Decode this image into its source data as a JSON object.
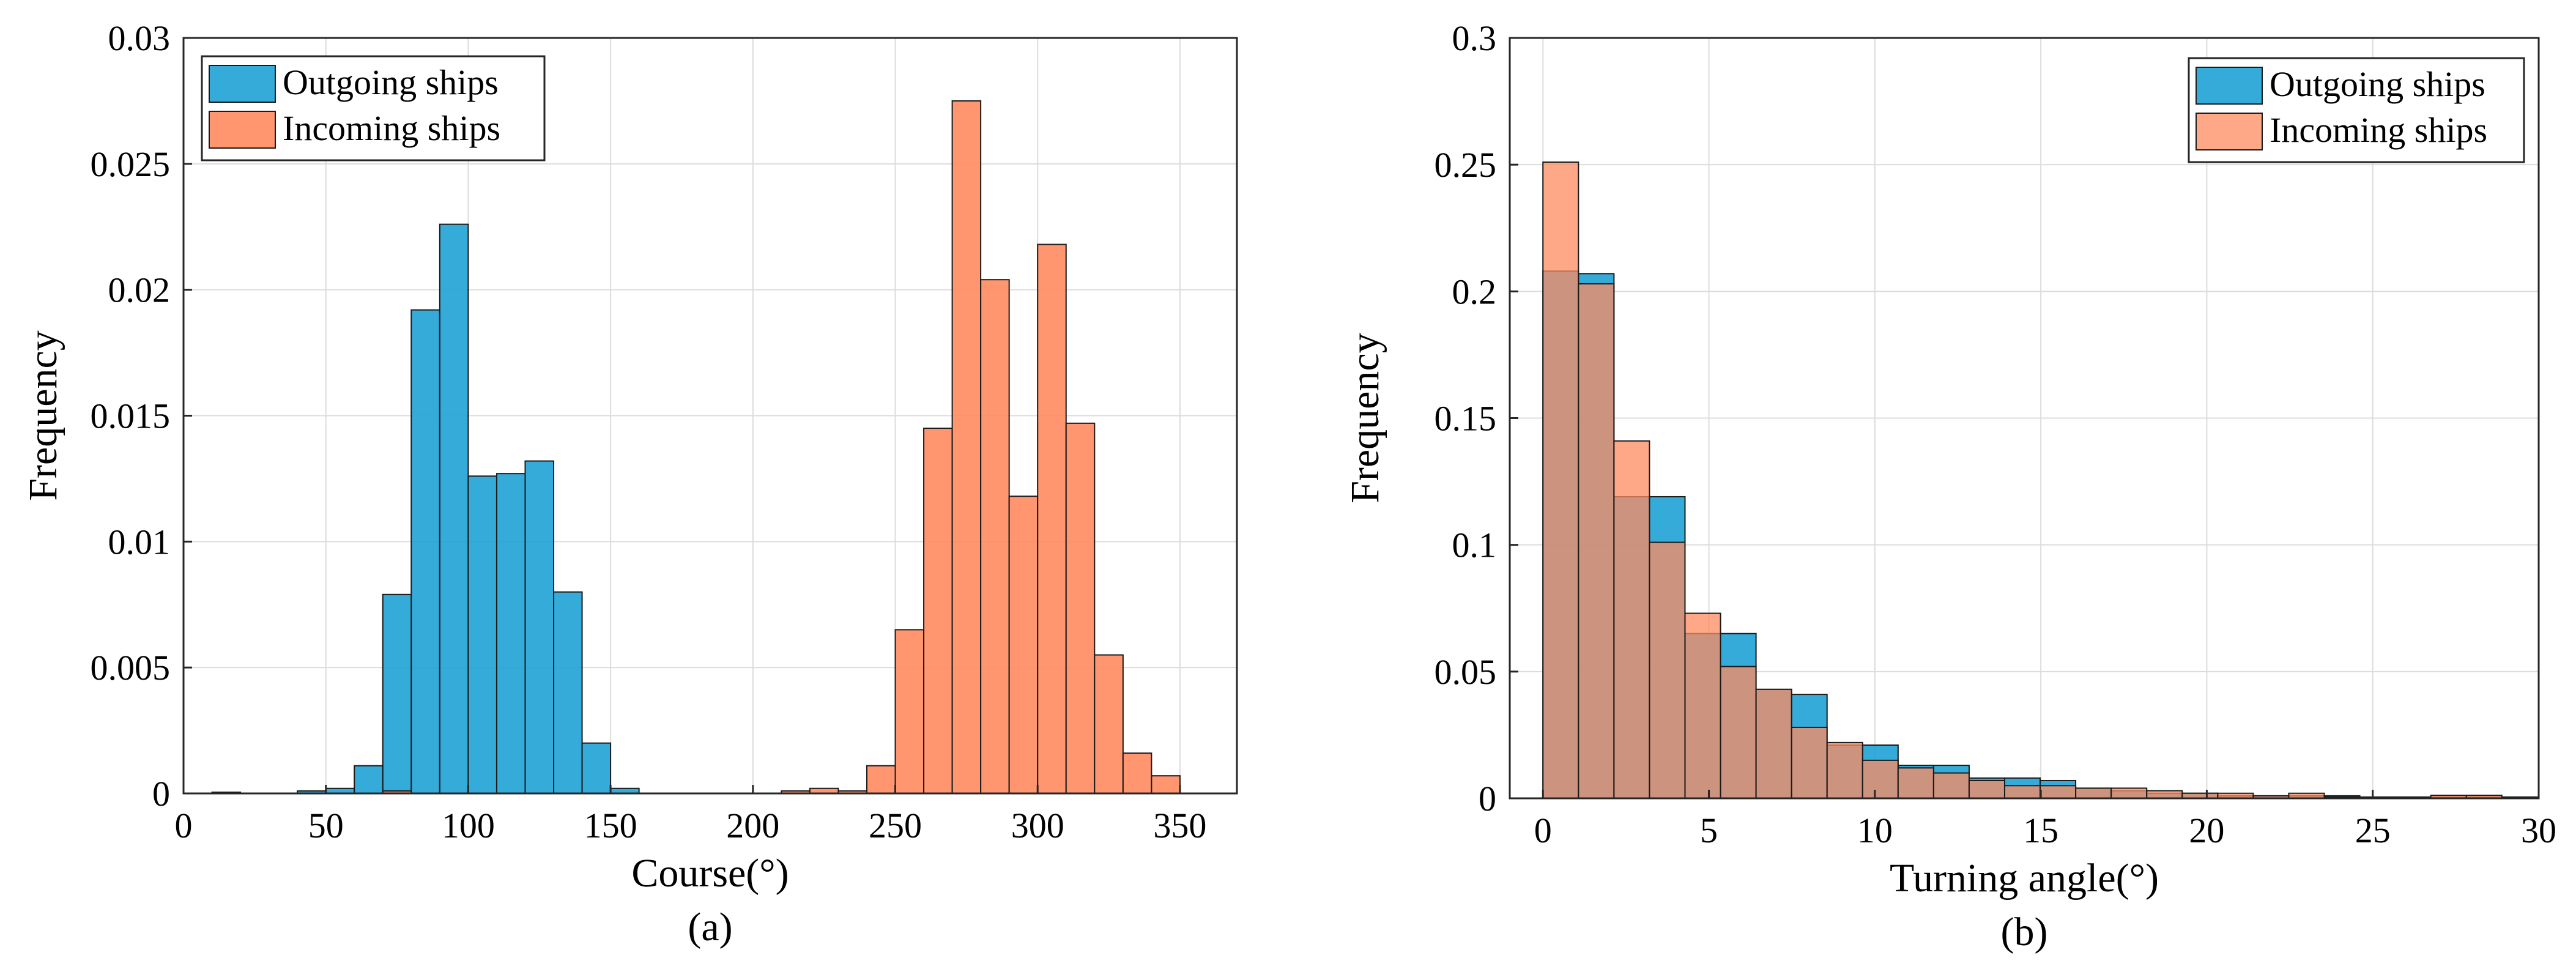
{
  "chart_data": [
    {
      "type": "bar",
      "subtype": "histogram",
      "caption": "(a)",
      "xlabel": "Course(°)",
      "ylabel": "Frequency",
      "xlim": [
        0,
        370
      ],
      "ylim": [
        0,
        0.03
      ],
      "xticks": [
        "0",
        "50",
        "100",
        "150",
        "200",
        "250",
        "300",
        "350"
      ],
      "yticks": [
        "0",
        "0.005",
        "0.01",
        "0.015",
        "0.02",
        "0.025",
        "0.03"
      ],
      "grid": true,
      "legend_position": "top-left",
      "legend": [
        "Outgoing ships",
        "Incoming ships"
      ],
      "bin_width": 10,
      "series": [
        {
          "name": "Outgoing ships",
          "color": "#1fa2d6",
          "opacity": 0.9,
          "bins": [
            [
              10,
              5e-05
            ],
            [
              40,
              0.0001
            ],
            [
              50,
              0.0002
            ],
            [
              60,
              0.0011
            ],
            [
              70,
              0.0079
            ],
            [
              80,
              0.0192
            ],
            [
              90,
              0.0226
            ],
            [
              100,
              0.0126
            ],
            [
              110,
              0.0127
            ],
            [
              120,
              0.0132
            ],
            [
              130,
              0.008
            ],
            [
              140,
              0.002
            ],
            [
              150,
              0.0002
            ]
          ]
        },
        {
          "name": "Incoming ships",
          "color": "#ff8b60",
          "opacity": 0.9,
          "bins": [
            [
              70,
              0.0001
            ],
            [
              210,
              0.0001
            ],
            [
              220,
              0.0002
            ],
            [
              230,
              0.0001
            ],
            [
              240,
              0.0011
            ],
            [
              250,
              0.0065
            ],
            [
              260,
              0.0145
            ],
            [
              270,
              0.0275
            ],
            [
              280,
              0.0204
            ],
            [
              290,
              0.0118
            ],
            [
              300,
              0.0218
            ],
            [
              310,
              0.0147
            ],
            [
              320,
              0.0055
            ],
            [
              330,
              0.0016
            ],
            [
              340,
              0.0007
            ]
          ]
        }
      ]
    },
    {
      "type": "bar",
      "subtype": "histogram",
      "caption": "(b)",
      "xlabel": "Turning angle(°)",
      "ylabel": "Frequency",
      "xlim": [
        -1,
        30
      ],
      "ylim": [
        0,
        0.3
      ],
      "xticks": [
        "0",
        "5",
        "10",
        "15",
        "20",
        "25",
        "30"
      ],
      "yticks": [
        "0",
        "0.05",
        "0.1",
        "0.15",
        "0.2",
        "0.25",
        "0.3"
      ],
      "grid": true,
      "legend_position": "top-right",
      "legend": [
        "Outgoing ships",
        "Incoming ships"
      ],
      "bin_width": 1.07,
      "series": [
        {
          "name": "Outgoing ships",
          "color": "#1fa2d6",
          "opacity": 0.9,
          "bins": [
            [
              0,
              0.208
            ],
            [
              1.07,
              0.207
            ],
            [
              2.14,
              0.119
            ],
            [
              3.21,
              0.119
            ],
            [
              4.28,
              0.065
            ],
            [
              5.35,
              0.065
            ],
            [
              6.42,
              0.043
            ],
            [
              7.49,
              0.041
            ],
            [
              8.56,
              0.021
            ],
            [
              9.63,
              0.021
            ],
            [
              10.7,
              0.013
            ],
            [
              11.77,
              0.013
            ],
            [
              12.84,
              0.008
            ],
            [
              13.91,
              0.008
            ],
            [
              14.98,
              0.007
            ],
            [
              16.05,
              0.004
            ],
            [
              17.12,
              0.003
            ],
            [
              18.19,
              0.002
            ],
            [
              19.26,
              0.002
            ],
            [
              20.33,
              0.001
            ],
            [
              21.4,
              0.001
            ],
            [
              22.47,
              0.001
            ],
            [
              23.54,
              0.001
            ],
            [
              24.61,
              0.0005
            ],
            [
              25.68,
              0.0005
            ],
            [
              26.75,
              0.0005
            ],
            [
              27.82,
              0.0005
            ],
            [
              28.89,
              0.0005
            ]
          ]
        },
        {
          "name": "Incoming ships",
          "color": "#ff8b60",
          "opacity": 0.75,
          "bins": [
            [
              0,
              0.251
            ],
            [
              1.07,
              0.203
            ],
            [
              2.14,
              0.141
            ],
            [
              3.21,
              0.101
            ],
            [
              4.28,
              0.073
            ],
            [
              5.35,
              0.052
            ],
            [
              6.42,
              0.043
            ],
            [
              7.49,
              0.028
            ],
            [
              8.56,
              0.022
            ],
            [
              9.63,
              0.015
            ],
            [
              10.7,
              0.012
            ],
            [
              11.77,
              0.01
            ],
            [
              12.84,
              0.007
            ],
            [
              13.91,
              0.005
            ],
            [
              14.98,
              0.005
            ],
            [
              16.05,
              0.004
            ],
            [
              17.12,
              0.004
            ],
            [
              18.19,
              0.003
            ],
            [
              19.26,
              0.002
            ],
            [
              20.33,
              0.002
            ],
            [
              21.4,
              0.001
            ],
            [
              22.47,
              0.002
            ],
            [
              23.54,
              0.0005
            ],
            [
              24.61,
              0.0005
            ],
            [
              25.68,
              0.0005
            ],
            [
              26.75,
              0.0012
            ],
            [
              27.82,
              0.0012
            ],
            [
              28.89,
              0.0005
            ]
          ]
        }
      ]
    }
  ]
}
